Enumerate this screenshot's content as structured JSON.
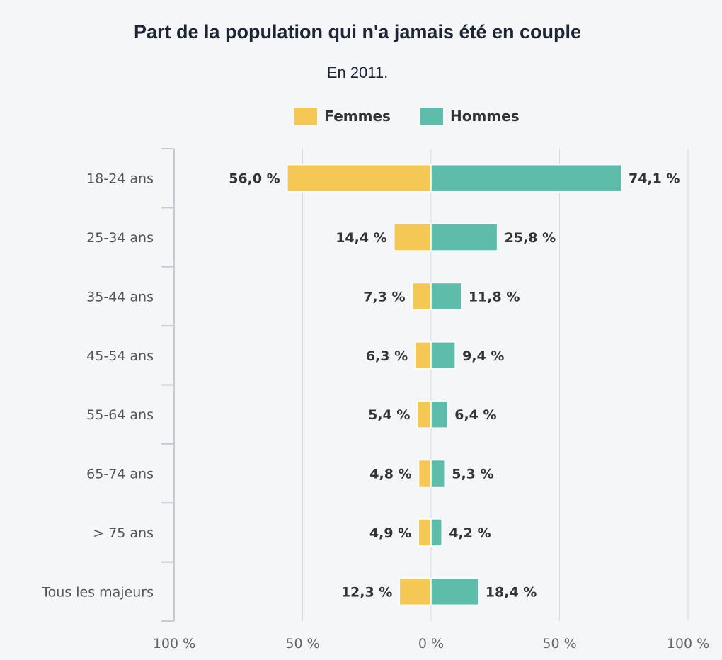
{
  "chart_data": {
    "type": "bar",
    "orientation": "horizontal-diverging",
    "title": "Part de la population qui n'a jamais été en couple",
    "subtitle": "En 2011.",
    "categories": [
      "18-24 ans",
      "25-34 ans",
      "35-44 ans",
      "45-54 ans",
      "55-64 ans",
      "65-74 ans",
      "> 75 ans",
      "Tous les majeurs"
    ],
    "series": [
      {
        "name": "Femmes",
        "color": "#f5c855",
        "side": "left",
        "values": [
          56.0,
          14.4,
          7.3,
          6.3,
          5.4,
          4.8,
          4.9,
          12.3
        ],
        "labels": [
          "56,0 %",
          "14,4 %",
          "7,3 %",
          "6,3 %",
          "5,4 %",
          "4,8 %",
          "4,9 %",
          "12,3 %"
        ]
      },
      {
        "name": "Hommes",
        "color": "#5dbcaa",
        "side": "right",
        "values": [
          74.1,
          25.8,
          11.8,
          9.4,
          6.4,
          5.3,
          4.2,
          18.4
        ],
        "labels": [
          "74,1 %",
          "25,8 %",
          "11,8 %",
          "9,4 %",
          "6,4 %",
          "5,3 %",
          "4,2 %",
          "18,4 %"
        ]
      }
    ],
    "xlim": [
      -100,
      100
    ],
    "ticks": [
      -100,
      -50,
      0,
      50,
      100
    ],
    "tick_labels": [
      "100 %",
      "50 %",
      "0 %",
      "50 %",
      "100 %"
    ],
    "grid": true,
    "legend_position": "top-center"
  }
}
